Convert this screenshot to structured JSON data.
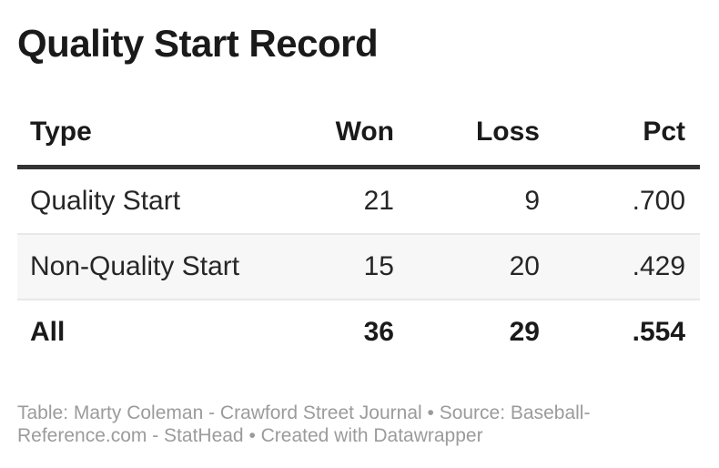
{
  "title": "Quality Start Record",
  "chart_data": {
    "type": "table",
    "columns": [
      {
        "id": "type",
        "label": "Type",
        "align": "left"
      },
      {
        "id": "won",
        "label": "Won",
        "align": "right"
      },
      {
        "id": "loss",
        "label": "Loss",
        "align": "right"
      },
      {
        "id": "pct",
        "label": "Pct",
        "align": "right"
      }
    ],
    "rows": [
      {
        "type": "Quality Start",
        "won": "21",
        "loss": "9",
        "pct": ".700"
      },
      {
        "type": "Non-Quality Start",
        "won": "15",
        "loss": "20",
        "pct": ".429"
      },
      {
        "type": "All",
        "won": "36",
        "loss": "29",
        "pct": ".554"
      }
    ],
    "total_row_index": 2
  },
  "footer": {
    "text": "Table: Marty Coleman - Crawford Street Journal • Source: Baseball-Reference.com - StatHead • Created with Datawrapper"
  },
  "colors": {
    "background": "#ffffff",
    "title_text": "#1a1a1a",
    "body_text": "#262626",
    "header_rule": "#333333",
    "row_divider": "#e8e8e8",
    "striped_row_bg": "#f7f7f7",
    "footer_text": "#9b9b9b"
  }
}
